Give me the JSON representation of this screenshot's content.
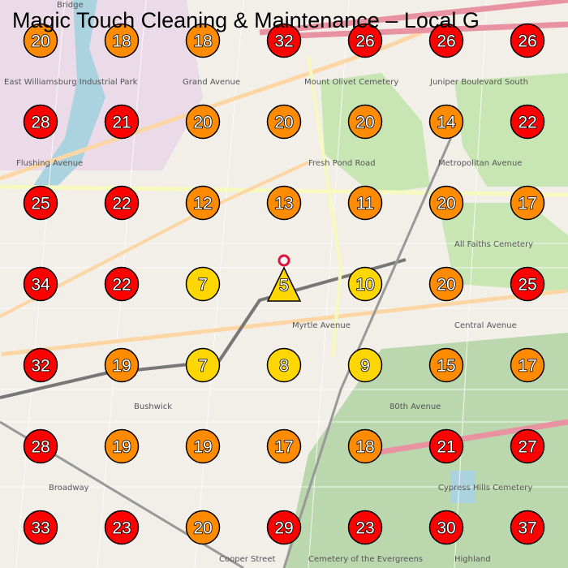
{
  "title": "Magic Touch Cleaning & Maintenance – Local G",
  "colors": {
    "low": "#ffd700",
    "mid": "#ff8c00",
    "high": "#ff0000",
    "origin_ring": "#e0143c"
  },
  "legend_thresholds": {
    "yellow_max": 10,
    "orange_max": 20
  },
  "grid": [
    [
      20,
      18,
      18,
      32,
      26,
      26,
      26
    ],
    [
      28,
      21,
      20,
      20,
      20,
      14,
      22
    ],
    [
      25,
      22,
      12,
      13,
      11,
      20,
      17
    ],
    [
      34,
      22,
      7,
      5,
      10,
      20,
      25
    ],
    [
      32,
      19,
      7,
      8,
      9,
      15,
      17
    ],
    [
      28,
      19,
      19,
      17,
      18,
      21,
      27
    ],
    [
      33,
      23,
      20,
      29,
      23,
      30,
      37
    ]
  ],
  "business_marker": {
    "row": 3,
    "col": 3,
    "rank": 5,
    "shape": "triangle"
  },
  "map_labels": [
    "Bridge",
    "East Williamsburg Industrial Park",
    "Grand Avenue",
    "Flushing Avenue",
    "Myrtle Avenue",
    "Central Avenue",
    "Metropolitan Avenue",
    "Fresh Pond Road",
    "Mount Olivet Cemetery",
    "All Faiths Cemetery",
    "Cypress Hills Cemetery",
    "Bushwick",
    "Broadway",
    "80th Avenue",
    "Cooper Street",
    "Juniper Boulevard South",
    "Highland",
    "Cemetery of the Evergreens"
  ]
}
